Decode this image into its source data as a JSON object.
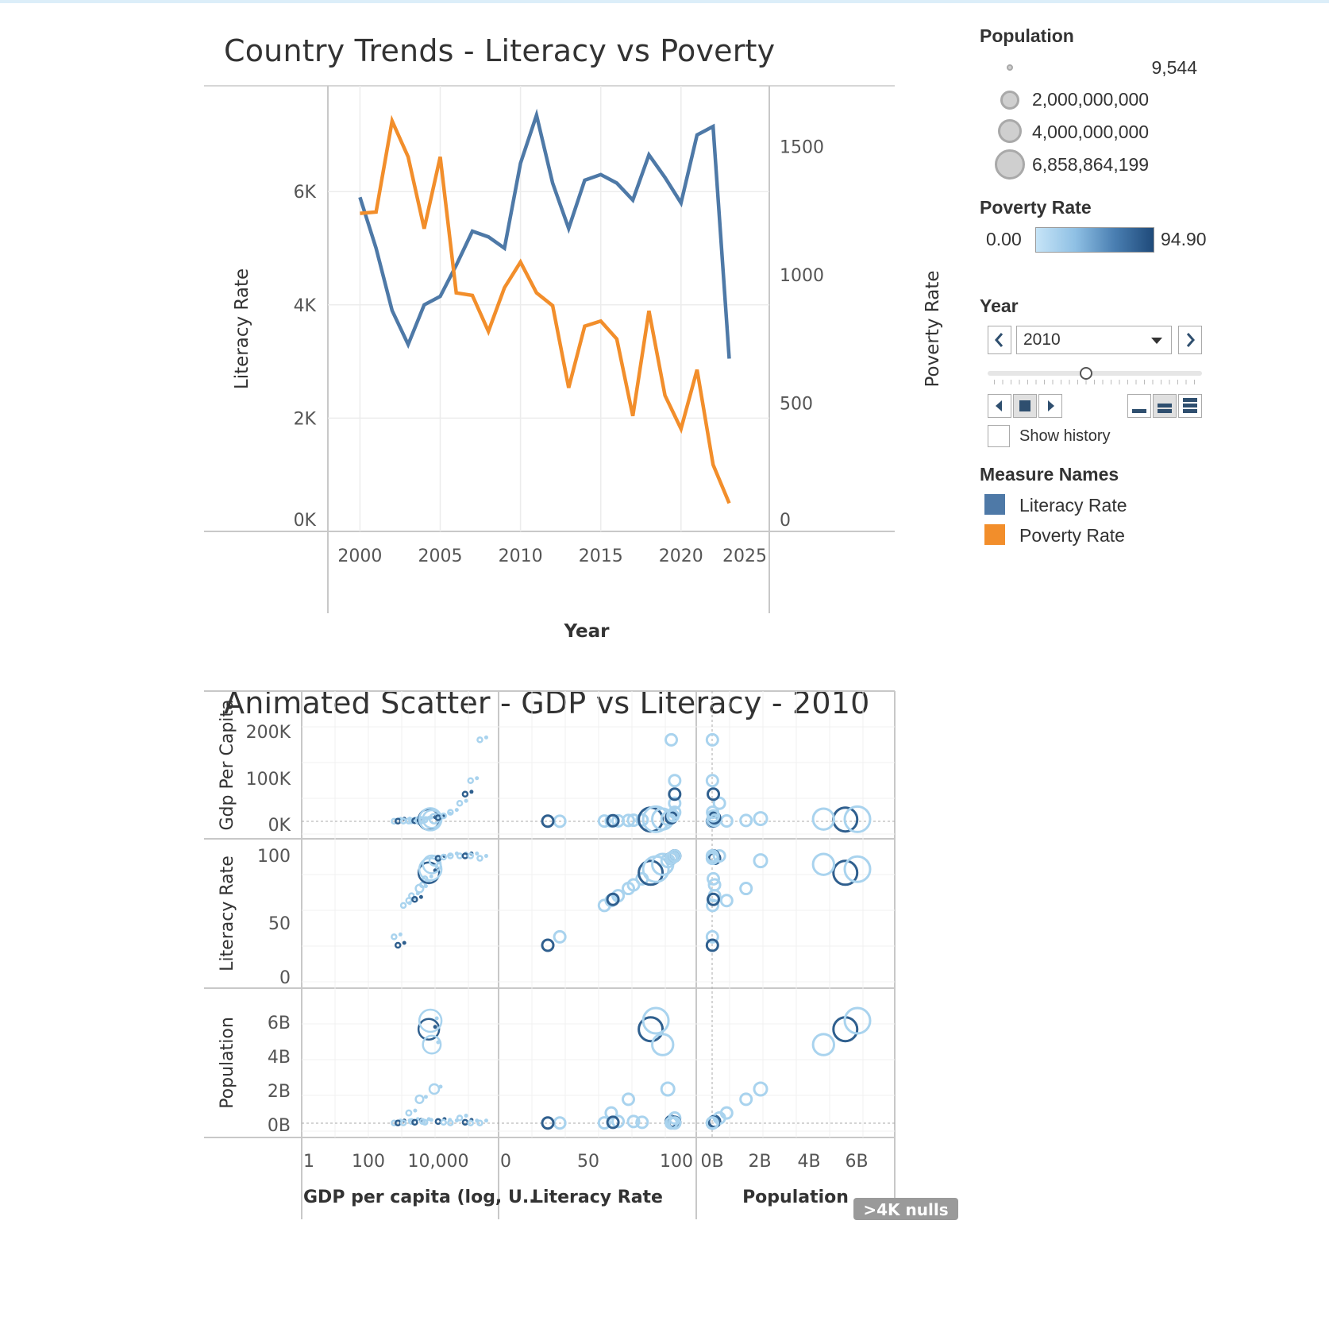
{
  "line_chart": {
    "title": "Country Trends - Literacy vs Poverty",
    "x_label": "Year",
    "y_left_label": "Literacy Rate",
    "y_right_label": "Poverty Rate",
    "x_ticks": [
      "2000",
      "2005",
      "2010",
      "2015",
      "2020",
      "2025"
    ],
    "y_left_ticks": [
      "0K",
      "2K",
      "4K",
      "6K"
    ],
    "y_right_ticks": [
      "0",
      "500",
      "1000",
      "1500"
    ]
  },
  "scatter": {
    "title": "Animated Scatter - GDP vs Literacy - 2010",
    "row_labels": [
      "Gdp Per Capita",
      "Literacy Rate",
      "Population"
    ],
    "col_labels": [
      "GDP per capita (log, U..",
      "Literacy Rate",
      "Population"
    ],
    "row_ticks": [
      [
        "200K",
        "100K",
        "0K"
      ],
      [
        "100",
        "50",
        "0"
      ],
      [
        "6B",
        "4B",
        "2B",
        "0B"
      ]
    ],
    "col_ticks": [
      [
        "1",
        "100",
        "10,000"
      ],
      [
        "0",
        "50",
        "100"
      ],
      [
        "0B",
        "2B",
        "4B",
        "6B"
      ]
    ],
    "nulls_badge": ">4K nulls"
  },
  "legend": {
    "population_title": "Population",
    "population_sizes": [
      "9,544",
      "2,000,000,000",
      "4,000,000,000",
      "6,858,864,199"
    ],
    "poverty_title": "Poverty Rate",
    "poverty_min": "0.00",
    "poverty_max": "94.90",
    "year_title": "Year",
    "year_value": "2010",
    "show_history": "Show history",
    "measure_title": "Measure Names",
    "measures": [
      "Literacy Rate",
      "Poverty Rate"
    ]
  },
  "colors": {
    "literacy": "#4e79a7",
    "poverty": "#f28e2b",
    "light": "#a9d3ee",
    "dark": "#2f5f8e"
  },
  "chart_data": [
    {
      "type": "line",
      "title": "Country Trends - Literacy vs Poverty",
      "xlabel": "Year",
      "x": [
        2000,
        2001,
        2002,
        2003,
        2004,
        2005,
        2006,
        2007,
        2008,
        2009,
        2010,
        2011,
        2012,
        2013,
        2014,
        2015,
        2016,
        2017,
        2018,
        2019,
        2020,
        2021,
        2022,
        2023
      ],
      "series": [
        {
          "name": "Literacy Rate",
          "axis": "left",
          "values": [
            5900,
            5000,
            3900,
            3300,
            4000,
            4150,
            4700,
            5300,
            5200,
            5000,
            6500,
            7350,
            6150,
            5350,
            6200,
            6300,
            6150,
            5850,
            6650,
            6250,
            5800,
            7000,
            7150,
            3050
          ]
        },
        {
          "name": "Poverty Rate",
          "axis": "right",
          "values": [
            1240,
            1245,
            1600,
            1460,
            1180,
            1460,
            930,
            920,
            780,
            950,
            1050,
            930,
            880,
            560,
            800,
            820,
            750,
            450,
            860,
            530,
            400,
            630,
            260,
            110
          ]
        }
      ],
      "ylabel_left": "Literacy Rate",
      "ylim_left": [
        0,
        7700
      ],
      "ylabel_right": "Poverty Rate",
      "ylim_right": [
        0,
        1700
      ],
      "xlim": [
        1998,
        2025.5
      ]
    },
    {
      "type": "scatter",
      "title": "Animated Scatter - GDP vs Literacy - 2010",
      "matrix_variables": [
        "GDP per capita (log, U..",
        "Literacy Rate",
        "Population"
      ],
      "points": [
        {
          "gdp": 300,
          "lit": 32,
          "pop": 0.01
        },
        {
          "gdp": 400,
          "lit": 25,
          "pop": 0.01
        },
        {
          "gdp": 600,
          "lit": 58,
          "pop": 0.02
        },
        {
          "gdp": 900,
          "lit": 62,
          "pop": 0.6
        },
        {
          "gdp": 1100,
          "lit": 66,
          "pop": 0.1
        },
        {
          "gdp": 1400,
          "lit": 63,
          "pop": 0.05
        },
        {
          "gdp": 2000,
          "lit": 72,
          "pop": 1.4
        },
        {
          "gdp": 2500,
          "lit": 75,
          "pop": 0.1
        },
        {
          "gdp": 3000,
          "lit": 80,
          "pop": 0.05
        },
        {
          "gdp": 4000,
          "lit": 85,
          "pop": 5.5
        },
        {
          "gdp": 4500,
          "lit": 88,
          "pop": 6.0
        },
        {
          "gdp": 5000,
          "lit": 92,
          "pop": 4.6
        },
        {
          "gdp": 6000,
          "lit": 95,
          "pop": 2.0
        },
        {
          "gdp": 8000,
          "lit": 97,
          "pop": 0.1
        },
        {
          "gdp": 12000,
          "lit": 98,
          "pop": 0.05
        },
        {
          "gdp": 20000,
          "lit": 99,
          "pop": 0.02
        },
        {
          "gdp": 40000,
          "lit": 99,
          "pop": 0.3
        },
        {
          "gdp": 60000,
          "lit": 99,
          "pop": 0.05
        },
        {
          "gdp": 90000,
          "lit": 99,
          "pop": 0.01
        },
        {
          "gdp": 180000,
          "lit": 97,
          "pop": 0.01
        }
      ]
    }
  ]
}
